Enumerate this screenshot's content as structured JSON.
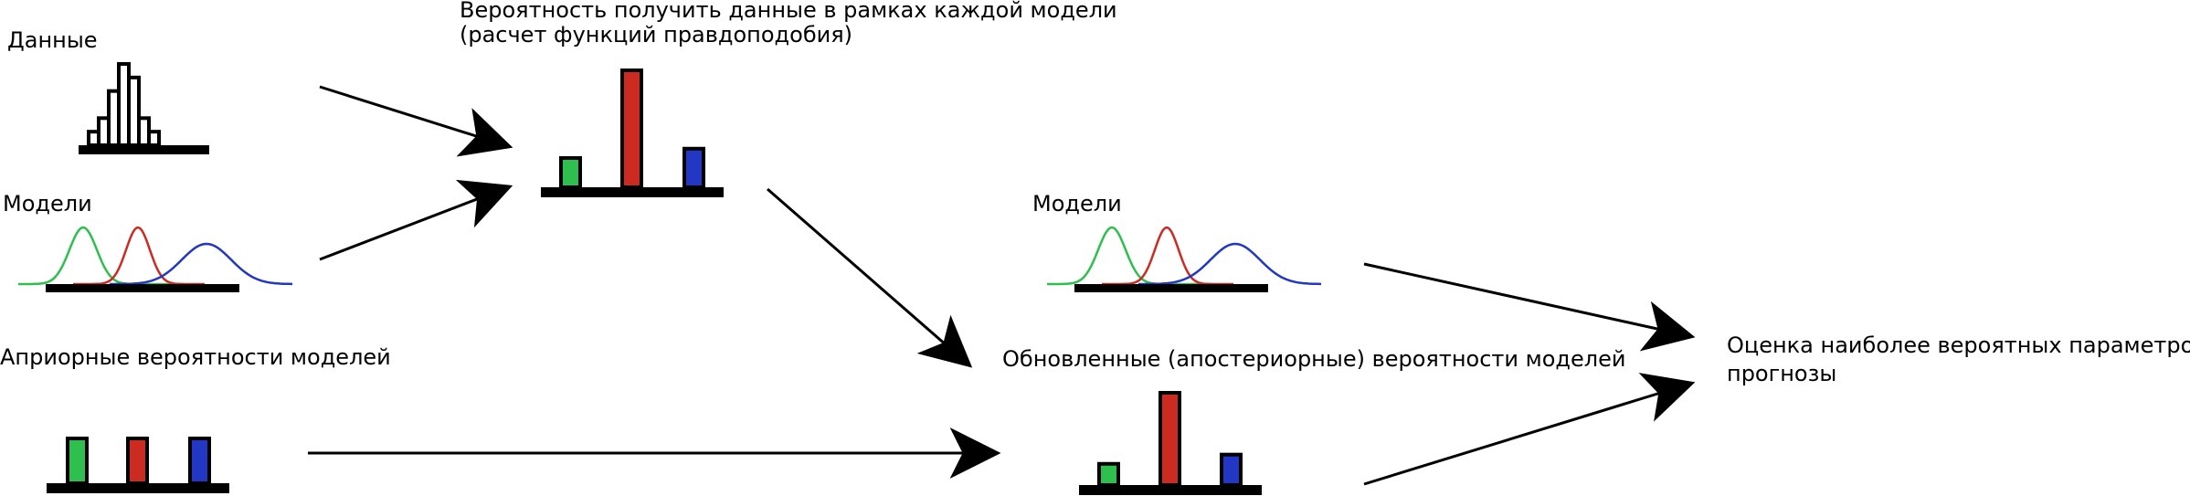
{
  "labels": {
    "data": "Данные",
    "models_left": "Модели",
    "prior": "Априорные вероятности моделей",
    "likelihood_line1": "Вероятность получить данные в рамках каждой модели",
    "likelihood_line2": "(расчет функций правдоподобия)",
    "models_right": "Модели",
    "posterior": "Обновленные (апостериорные) вероятности моделей",
    "result_line1": "Оценка наиболее вероятных параметров,",
    "result_line2": "прогнозы"
  },
  "colors": {
    "green": "#2fbf4f",
    "red": "#cc2b22",
    "blue": "#2237c4",
    "axis": "#000000"
  },
  "histogram": {
    "values": [
      1,
      2,
      4,
      6,
      5,
      2,
      1
    ]
  },
  "likelihood_bars": [
    {
      "color_key": "green",
      "value": 0.25
    },
    {
      "color_key": "red",
      "value": 1.0
    },
    {
      "color_key": "blue",
      "value": 0.33
    }
  ],
  "prior_bars": [
    {
      "color_key": "green",
      "value": 1.0
    },
    {
      "color_key": "red",
      "value": 1.0
    },
    {
      "color_key": "blue",
      "value": 1.0
    }
  ],
  "posterior_bars": [
    {
      "color_key": "green",
      "value": 0.23
    },
    {
      "color_key": "red",
      "value": 1.0
    },
    {
      "color_key": "blue",
      "value": 0.33
    }
  ],
  "model_curves": [
    {
      "color_key": "green"
    },
    {
      "color_key": "red"
    },
    {
      "color_key": "blue"
    }
  ]
}
